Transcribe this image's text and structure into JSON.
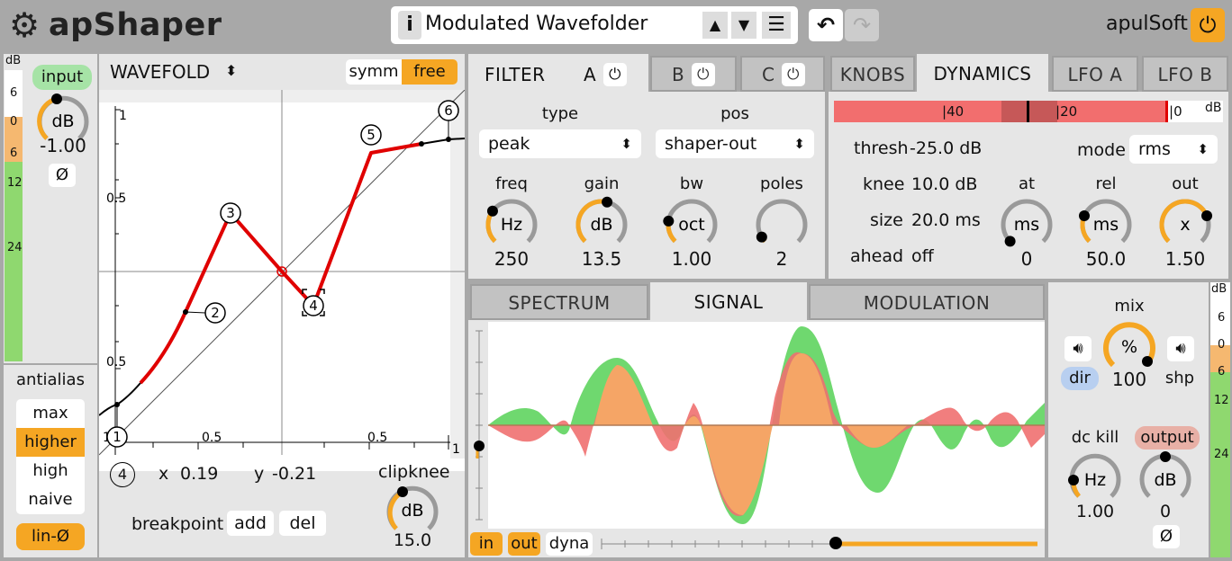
{
  "header": {
    "app_name": "apShaper",
    "preset_name": "Modulated Wavefolder",
    "info_label": "i",
    "brand": "apulSoft"
  },
  "input": {
    "label": "input",
    "unit": "dB",
    "value": "-1.00",
    "phase_label": "Ø",
    "meter_title": "dB",
    "meter_ticks": [
      "6",
      "0",
      "6",
      "12",
      "24"
    ]
  },
  "antialias": {
    "title": "antialias",
    "options": [
      "max",
      "higher",
      "high",
      "naive"
    ],
    "selected": "higher",
    "lin_phase": "lin-Ø"
  },
  "shaper": {
    "mode": "WAVEFOLD",
    "mode_arrow": "◆",
    "symm_label": "symm",
    "free_label": "free",
    "y_ticks": [
      "1",
      "0.5",
      "0.5"
    ],
    "x_ticks": [
      "1",
      "0.5",
      "0.5",
      "1"
    ],
    "points": [
      "1",
      "2",
      "3",
      "4",
      "5",
      "6"
    ],
    "selected_point": "4",
    "x_label": "x",
    "x_value": "0.19",
    "y_label": "y",
    "y_value": "-0.21",
    "breakpoint_label": "breakpoint",
    "add_label": "add",
    "del_label": "del",
    "clipknee_label": "clipknee",
    "clipknee_unit": "dB",
    "clipknee_value": "15.0"
  },
  "filter": {
    "title": "FILTER",
    "tabs": [
      "A",
      "B",
      "C"
    ],
    "type_label": "type",
    "type_value": "peak",
    "pos_label": "pos",
    "pos_value": "shaper-out",
    "knobs": [
      {
        "label": "freq",
        "unit": "Hz",
        "value": "250",
        "level": 0.3
      },
      {
        "label": "gain",
        "unit": "dB",
        "value": "13.5",
        "level": 0.55
      },
      {
        "label": "bw",
        "unit": "oct",
        "value": "1.00",
        "level": 0.2
      },
      {
        "label": "poles",
        "unit": "",
        "value": "2",
        "level": 0.05
      }
    ]
  },
  "right_tabs": [
    "KNOBS",
    "DYNAMICS",
    "LFO A",
    "LFO B"
  ],
  "right_tab_selected": "DYNAMICS",
  "dynamics": {
    "meter_labels": [
      "40",
      "20",
      "0"
    ],
    "meter_unit": "dB",
    "thresh_label": "thresh",
    "thresh_value": "-25.0",
    "thresh_unit": "dB",
    "knee_label": "knee",
    "knee_value": "10.0",
    "knee_unit": "dB",
    "size_label": "size",
    "size_value": "20.0",
    "size_unit": "ms",
    "ahead_label": "ahead",
    "ahead_value": "off",
    "mode_label": "mode",
    "mode_value": "rms",
    "knobs": [
      {
        "label": "at",
        "unit": "ms",
        "value": "0",
        "level": 0.0
      },
      {
        "label": "rel",
        "unit": "ms",
        "value": "50.0",
        "level": 0.25
      },
      {
        "label": "out",
        "unit": "x",
        "value": "1.50",
        "level": 0.75
      }
    ]
  },
  "viz": {
    "tabs": [
      "SPECTRUM",
      "SIGNAL",
      "MODULATION"
    ],
    "selected": "SIGNAL",
    "in_label": "in",
    "out_label": "out",
    "dyna_label": "dyna"
  },
  "mix": {
    "label": "mix",
    "unit": "%",
    "value": "100",
    "dir_label": "dir",
    "shp_label": "shp",
    "dckill_label": "dc kill",
    "dckill_unit": "Hz",
    "dckill_value": "1.00",
    "output_label": "output",
    "output_unit": "dB",
    "output_value": "0",
    "phase_label": "Ø",
    "meter_title": "dB",
    "meter_ticks": [
      "6",
      "0",
      "6",
      "12",
      "24"
    ]
  },
  "colors": {
    "accent": "#f5a623",
    "curve": "#e00000",
    "wave_in": "#f07070",
    "wave_out": "#6fd86f",
    "wave_overlap": "#f5a566",
    "meter_green": "#8fd86f"
  }
}
